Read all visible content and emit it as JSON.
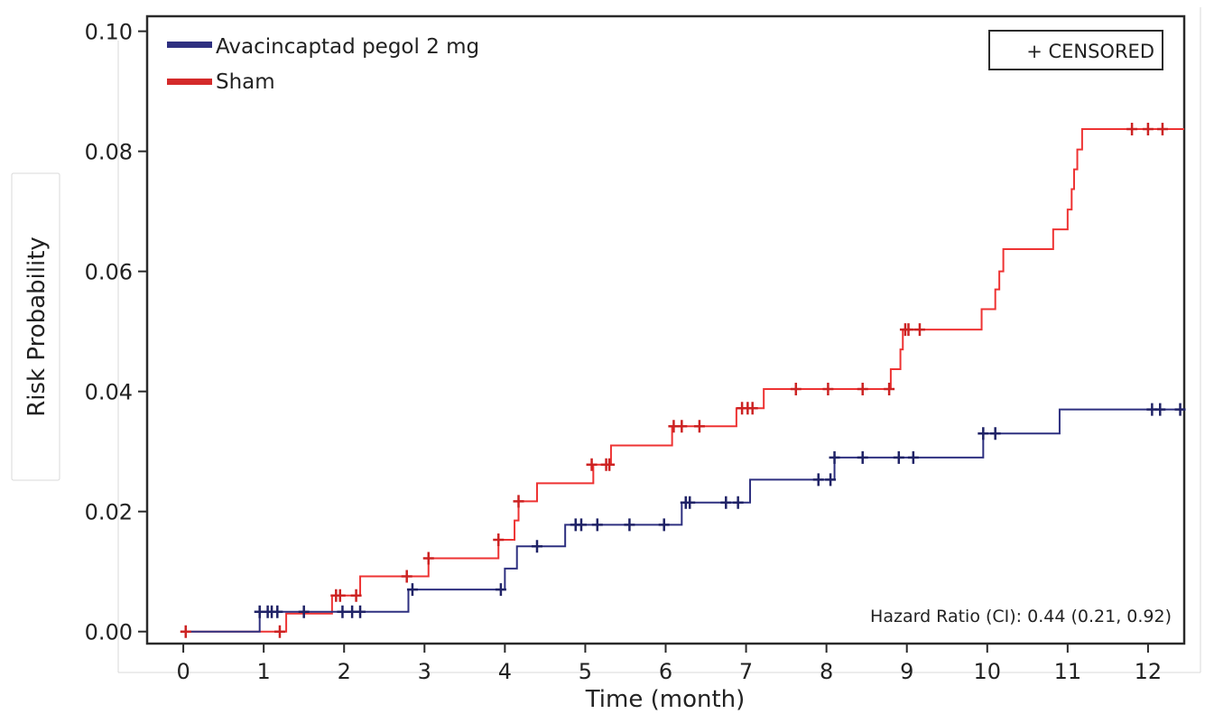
{
  "chart_data": {
    "type": "line",
    "xlabel": "Time (month)",
    "ylabel": "Risk Probability",
    "xlim": [
      -0.45,
      12.45
    ],
    "ylim": [
      -0.002,
      0.1025
    ],
    "x_ticks": [
      0,
      1,
      2,
      3,
      4,
      5,
      6,
      7,
      8,
      9,
      10,
      11,
      12
    ],
    "x_tick_labels": [
      "0",
      "1",
      "2",
      "3",
      "4",
      "5",
      "6",
      "7",
      "8",
      "9",
      "10",
      "11",
      "12"
    ],
    "y_ticks": [
      0,
      0.02,
      0.04,
      0.06,
      0.08,
      0.1
    ],
    "y_tick_labels": [
      "0.00",
      "0.02",
      "0.04",
      "0.06",
      "0.08",
      "0.10"
    ],
    "censor_legend": "+ CENSORED",
    "annotation": "Hazard Ratio (CI): 0.44 (0.21, 0.92)",
    "legend_position": "top-left",
    "series": [
      {
        "name": "Avacincaptad pegol 2 mg",
        "color": "#2e3080",
        "steps": [
          [
            0,
            0
          ],
          [
            0.95,
            0.0033
          ],
          [
            2.8,
            0.007
          ],
          [
            4.0,
            0.0105
          ],
          [
            4.15,
            0.0142
          ],
          [
            4.75,
            0.0178
          ],
          [
            6.2,
            0.0215
          ],
          [
            7.05,
            0.0253
          ],
          [
            8.1,
            0.029
          ],
          [
            9.95,
            0.033
          ],
          [
            10.9,
            0.037
          ],
          [
            12.45,
            0.037
          ]
        ],
        "censored": [
          [
            0.95,
            0.0033
          ],
          [
            1.05,
            0.0033
          ],
          [
            1.1,
            0.0033
          ],
          [
            1.17,
            0.0033
          ],
          [
            1.5,
            0.0033
          ],
          [
            1.98,
            0.0033
          ],
          [
            2.1,
            0.0033
          ],
          [
            2.2,
            0.0033
          ],
          [
            2.85,
            0.007
          ],
          [
            3.95,
            0.007
          ],
          [
            4.4,
            0.0142
          ],
          [
            4.88,
            0.0178
          ],
          [
            4.95,
            0.0178
          ],
          [
            5.15,
            0.0178
          ],
          [
            5.55,
            0.0178
          ],
          [
            5.98,
            0.0178
          ],
          [
            6.25,
            0.0215
          ],
          [
            6.3,
            0.0215
          ],
          [
            6.75,
            0.0215
          ],
          [
            6.9,
            0.0215
          ],
          [
            7.9,
            0.0253
          ],
          [
            8.05,
            0.0253
          ],
          [
            8.1,
            0.029
          ],
          [
            8.45,
            0.029
          ],
          [
            8.9,
            0.029
          ],
          [
            9.08,
            0.029
          ],
          [
            9.95,
            0.033
          ],
          [
            10.1,
            0.033
          ],
          [
            12.05,
            0.037
          ],
          [
            12.15,
            0.037
          ],
          [
            12.4,
            0.037
          ]
        ]
      },
      {
        "name": "Sham",
        "color": "#ee3333",
        "steps": [
          [
            0,
            0
          ],
          [
            1.28,
            0.003
          ],
          [
            1.85,
            0.006
          ],
          [
            2.2,
            0.0092
          ],
          [
            3.05,
            0.0122
          ],
          [
            3.92,
            0.0153
          ],
          [
            4.12,
            0.0185
          ],
          [
            4.17,
            0.0217
          ],
          [
            4.4,
            0.0247
          ],
          [
            5.1,
            0.0278
          ],
          [
            5.32,
            0.031
          ],
          [
            6.08,
            0.0342
          ],
          [
            6.88,
            0.0372
          ],
          [
            7.22,
            0.0404
          ],
          [
            8.8,
            0.0437
          ],
          [
            8.92,
            0.047
          ],
          [
            8.95,
            0.0503
          ],
          [
            9.93,
            0.0537
          ],
          [
            10.1,
            0.057
          ],
          [
            10.15,
            0.06
          ],
          [
            10.2,
            0.0637
          ],
          [
            10.82,
            0.067
          ],
          [
            11.0,
            0.0703
          ],
          [
            11.05,
            0.0737
          ],
          [
            11.08,
            0.077
          ],
          [
            11.12,
            0.0803
          ],
          [
            11.18,
            0.0837
          ],
          [
            12.45,
            0.0837
          ]
        ],
        "censored": [
          [
            0.03,
            0.0
          ],
          [
            1.2,
            0.0
          ],
          [
            1.9,
            0.006
          ],
          [
            1.95,
            0.006
          ],
          [
            2.15,
            0.006
          ],
          [
            2.78,
            0.0092
          ],
          [
            3.05,
            0.0122
          ],
          [
            3.92,
            0.0153
          ],
          [
            4.17,
            0.0217
          ],
          [
            5.08,
            0.0278
          ],
          [
            5.26,
            0.0278
          ],
          [
            5.3,
            0.0278
          ],
          [
            6.1,
            0.0342
          ],
          [
            6.2,
            0.0342
          ],
          [
            6.42,
            0.0342
          ],
          [
            6.95,
            0.0372
          ],
          [
            7.02,
            0.0372
          ],
          [
            7.08,
            0.0372
          ],
          [
            7.62,
            0.0404
          ],
          [
            8.02,
            0.0404
          ],
          [
            8.45,
            0.0404
          ],
          [
            8.78,
            0.0404
          ],
          [
            8.98,
            0.0503
          ],
          [
            9.02,
            0.0503
          ],
          [
            9.16,
            0.0503
          ],
          [
            11.8,
            0.0837
          ],
          [
            12.0,
            0.0837
          ],
          [
            12.18,
            0.0837
          ]
        ]
      }
    ]
  }
}
